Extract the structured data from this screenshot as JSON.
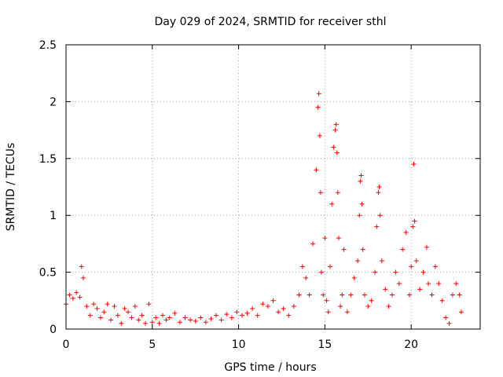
{
  "chart_data": {
    "type": "scatter",
    "title": "Day 029 of 2024, SRMTID for receiver sthl",
    "xlabel": "GPS time / hours",
    "ylabel": "SRMTID / TECUs",
    "xlim": [
      0,
      24
    ],
    "ylim": [
      0,
      2.5
    ],
    "xticks": [
      0,
      5,
      10,
      15,
      20
    ],
    "xtick_labels": [
      "0",
      "5",
      "10",
      "15",
      "20"
    ],
    "yticks": [
      0,
      0.5,
      1,
      1.5,
      2,
      2.5
    ],
    "ytick_labels": [
      "0",
      "0.5",
      "1",
      "1.5",
      "2",
      "2.5"
    ],
    "grid": true,
    "marker": "+",
    "color": "#ff0000",
    "x_range_of_data": [
      0,
      22.9
    ],
    "series": [
      {
        "name": "SRMTID",
        "x": [
          0.0,
          0.2,
          0.4,
          0.6,
          0.8,
          0.9,
          1.0,
          1.2,
          1.4,
          1.6,
          1.8,
          2.0,
          2.2,
          2.4,
          2.6,
          2.8,
          3.0,
          3.2,
          3.4,
          3.6,
          3.8,
          4.0,
          4.2,
          4.4,
          4.6,
          4.8,
          5.0,
          5.2,
          5.4,
          5.6,
          5.8,
          6.0,
          6.3,
          6.6,
          6.9,
          7.2,
          7.5,
          7.8,
          8.1,
          8.4,
          8.7,
          9.0,
          9.3,
          9.6,
          9.9,
          10.2,
          10.5,
          10.8,
          11.1,
          11.4,
          11.7,
          12.0,
          12.3,
          12.6,
          12.9,
          13.2,
          13.5,
          13.7,
          13.9,
          14.1,
          14.3,
          14.5,
          14.6,
          14.65,
          14.7,
          14.75,
          14.8,
          14.9,
          15.0,
          15.1,
          15.2,
          15.3,
          15.4,
          15.5,
          15.6,
          15.65,
          15.7,
          15.75,
          15.8,
          15.9,
          16.0,
          16.1,
          16.3,
          16.5,
          16.7,
          16.9,
          17.0,
          17.05,
          17.1,
          17.15,
          17.2,
          17.3,
          17.5,
          17.7,
          17.9,
          18.0,
          18.1,
          18.15,
          18.2,
          18.3,
          18.5,
          18.7,
          18.9,
          19.1,
          19.3,
          19.5,
          19.7,
          19.9,
          20.0,
          20.1,
          20.15,
          20.2,
          20.3,
          20.5,
          20.7,
          20.9,
          21.0,
          21.2,
          21.4,
          21.6,
          21.8,
          22.0,
          22.2,
          22.4,
          22.6,
          22.8,
          22.9
        ],
        "y": [
          0.22,
          0.3,
          0.27,
          0.32,
          0.28,
          0.55,
          0.45,
          0.2,
          0.12,
          0.22,
          0.18,
          0.1,
          0.15,
          0.22,
          0.08,
          0.2,
          0.12,
          0.05,
          0.18,
          0.15,
          0.1,
          0.2,
          0.08,
          0.12,
          0.05,
          0.22,
          0.06,
          0.1,
          0.05,
          0.12,
          0.08,
          0.1,
          0.14,
          0.06,
          0.1,
          0.08,
          0.07,
          0.1,
          0.06,
          0.09,
          0.12,
          0.08,
          0.13,
          0.1,
          0.15,
          0.12,
          0.14,
          0.18,
          0.12,
          0.22,
          0.2,
          0.25,
          0.15,
          0.18,
          0.12,
          0.2,
          0.3,
          0.55,
          0.45,
          0.3,
          0.75,
          1.4,
          1.95,
          2.07,
          1.7,
          1.2,
          0.5,
          0.3,
          0.8,
          0.25,
          0.15,
          0.55,
          1.1,
          1.6,
          1.75,
          1.8,
          1.55,
          1.2,
          0.8,
          0.2,
          0.3,
          0.7,
          0.15,
          0.3,
          0.45,
          0.6,
          1.0,
          1.3,
          1.35,
          1.1,
          0.7,
          0.3,
          0.2,
          0.25,
          0.5,
          0.9,
          1.2,
          1.25,
          1.0,
          0.6,
          0.35,
          0.2,
          0.3,
          0.5,
          0.4,
          0.7,
          0.85,
          0.3,
          0.55,
          0.9,
          1.45,
          0.95,
          0.6,
          0.35,
          0.5,
          0.72,
          0.4,
          0.3,
          0.55,
          0.4,
          0.25,
          0.1,
          0.05,
          0.3,
          0.4,
          0.3,
          0.15
        ]
      }
    ]
  }
}
